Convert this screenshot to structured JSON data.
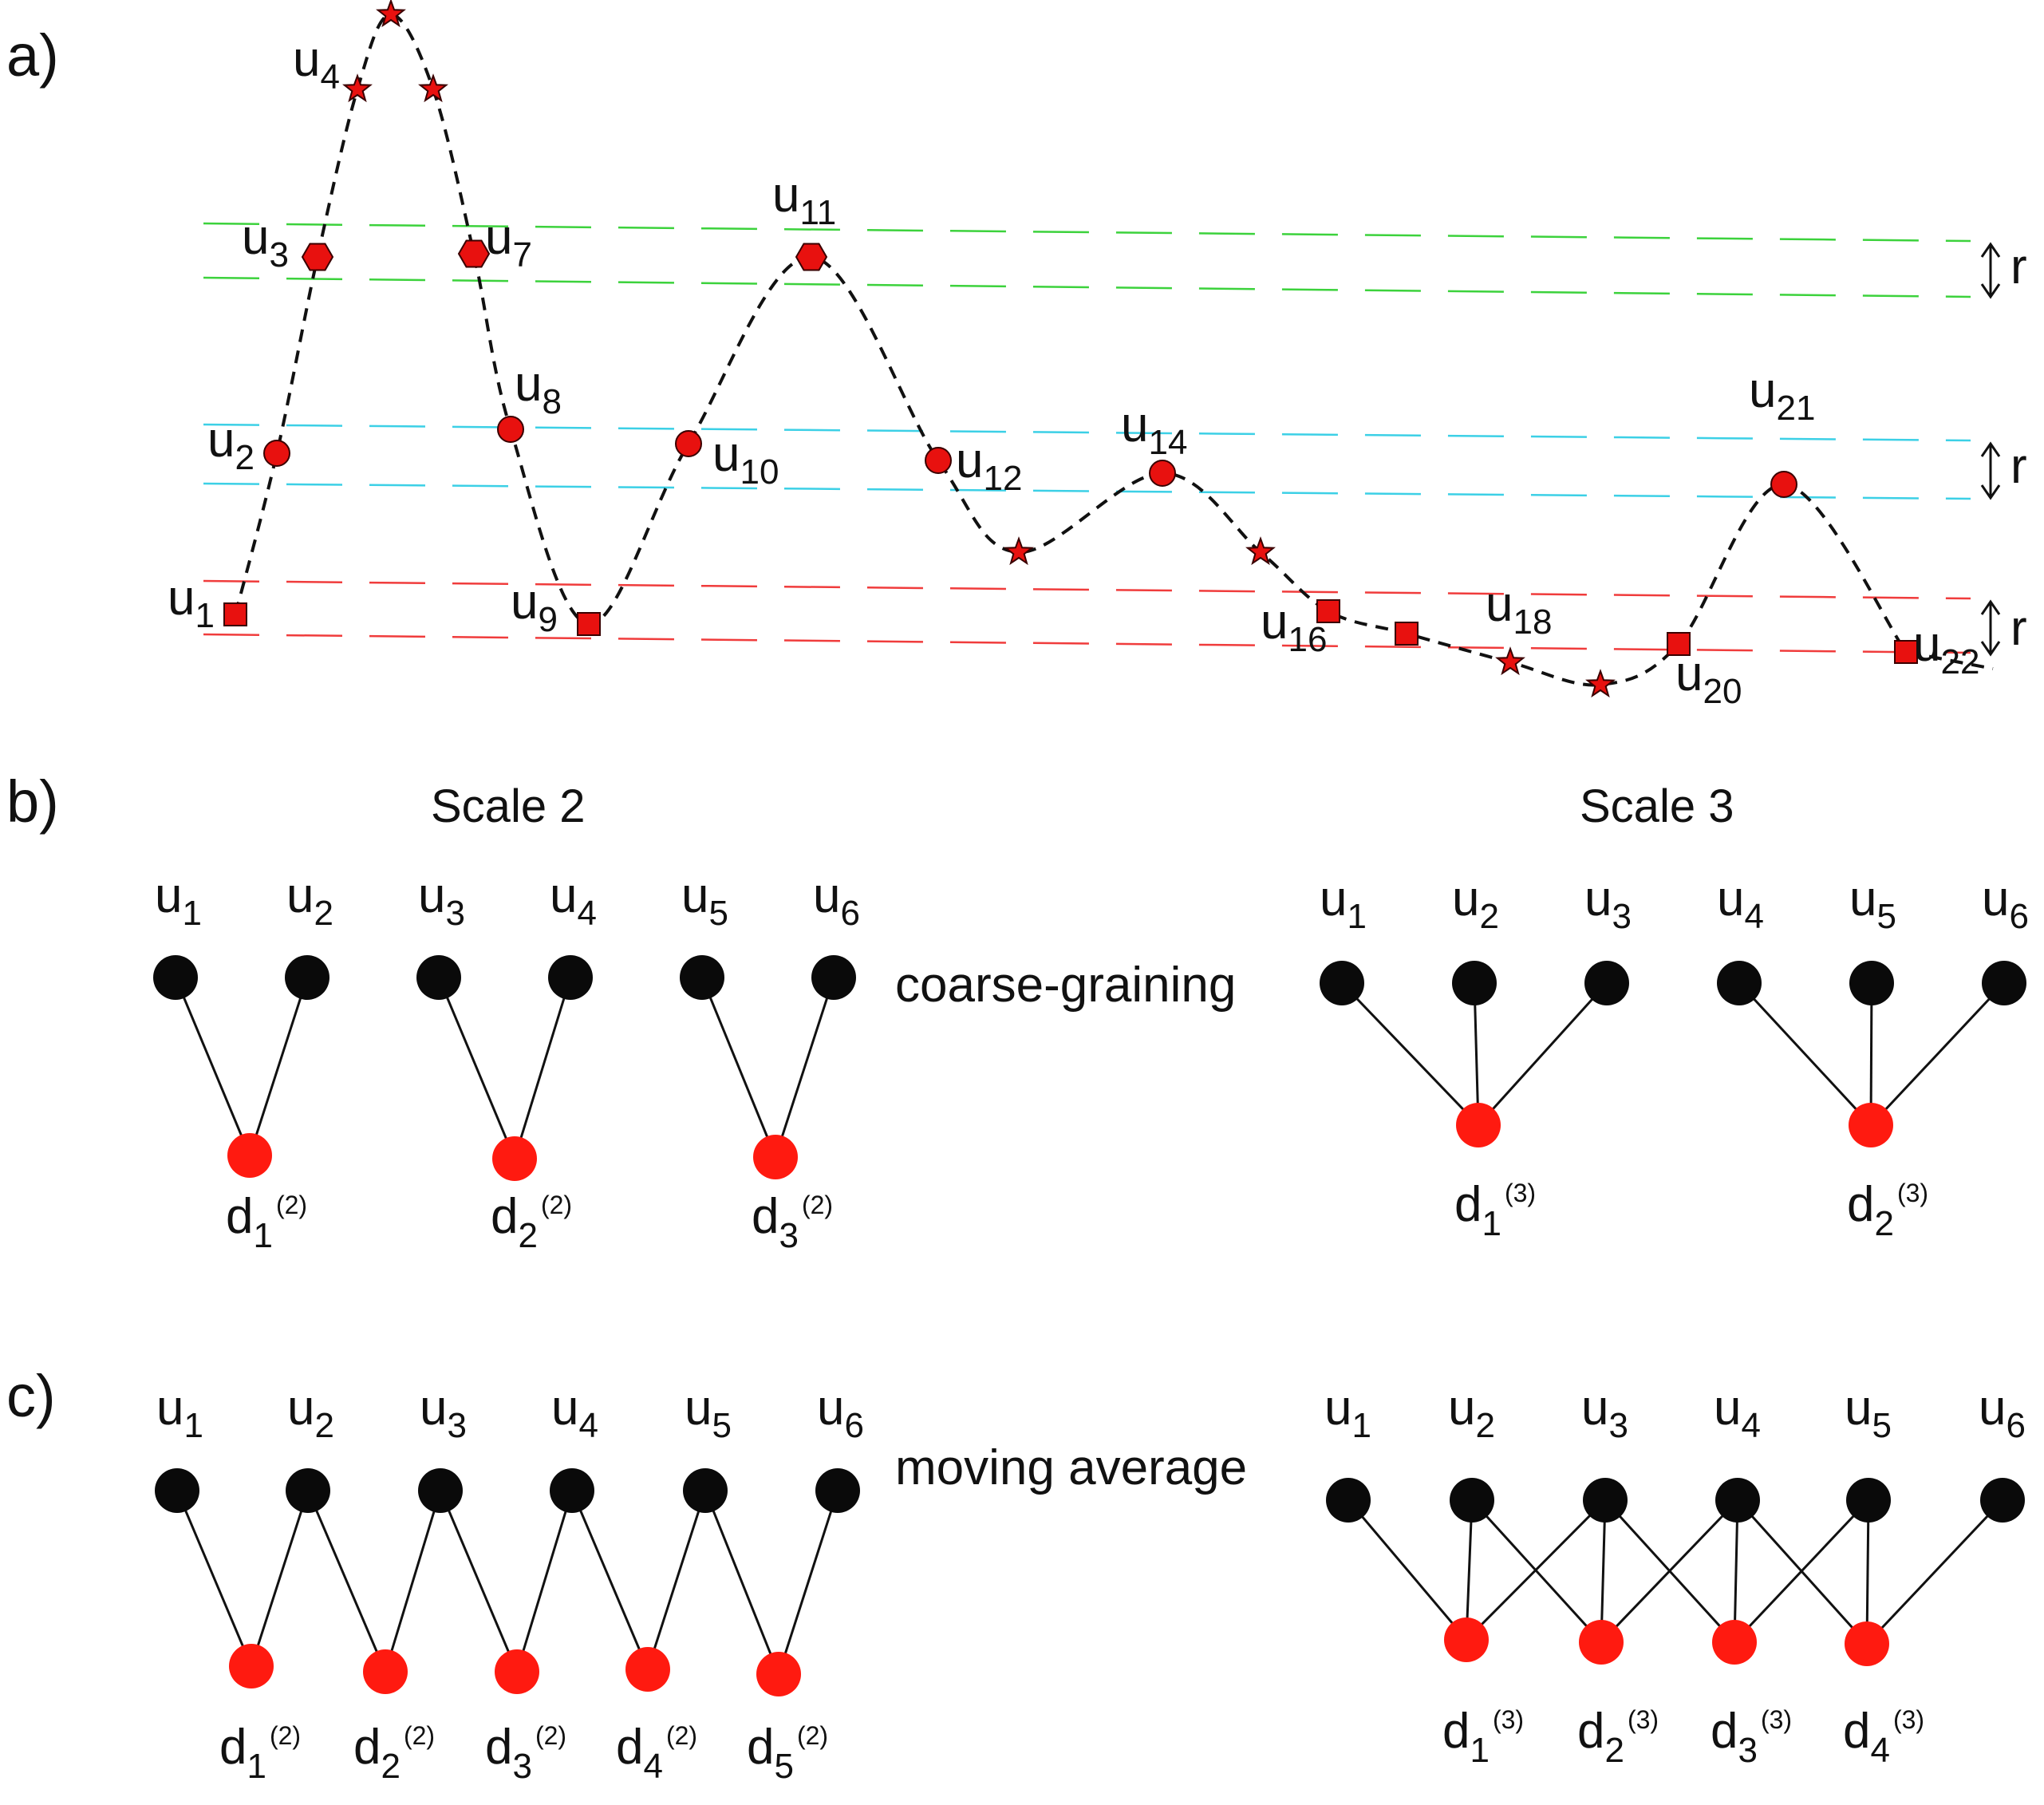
{
  "panel_labels": {
    "a": "a)",
    "b": "b)",
    "c": "c)"
  },
  "colors": {
    "marker_fill": "#e8110f",
    "marker_stroke": "#3a0000",
    "node_black": "#0a0a0a",
    "node_red": "#ff1a10",
    "band_green": "#3cd23c",
    "band_cyan": "#3cd0e6",
    "band_red": "#f03c3c",
    "curve": "#111111"
  },
  "panel_a": {
    "r_label": "r",
    "point_labels": [
      {
        "base": "u",
        "sub": "1"
      },
      {
        "base": "u",
        "sub": "2"
      },
      {
        "base": "u",
        "sub": "3"
      },
      {
        "base": "u",
        "sub": "4"
      },
      {
        "base": "u",
        "sub": "7"
      },
      {
        "base": "u",
        "sub": "8"
      },
      {
        "base": "u",
        "sub": "9"
      },
      {
        "base": "u",
        "sub": "10"
      },
      {
        "base": "u",
        "sub": "11"
      },
      {
        "base": "u",
        "sub": "12"
      },
      {
        "base": "u",
        "sub": "14"
      },
      {
        "base": "u",
        "sub": "16"
      },
      {
        "base": "u",
        "sub": "18"
      },
      {
        "base": "u",
        "sub": "20"
      },
      {
        "base": "u",
        "sub": "21"
      },
      {
        "base": "u",
        "sub": "22"
      }
    ],
    "marker_types": [
      "square",
      "circle",
      "hexagon",
      "star",
      "star",
      "star",
      "hexagon",
      "circle",
      "square",
      "circle",
      "hexagon",
      "circle",
      "star",
      "circle",
      "star",
      "square",
      "square",
      "star",
      "star",
      "square",
      "circle",
      "square"
    ]
  },
  "panel_b": {
    "scale2_title": "Scale 2",
    "scale3_title": "Scale 3",
    "method": "coarse-graining",
    "top_labels": [
      {
        "base": "u",
        "sub": "1"
      },
      {
        "base": "u",
        "sub": "2"
      },
      {
        "base": "u",
        "sub": "3"
      },
      {
        "base": "u",
        "sub": "4"
      },
      {
        "base": "u",
        "sub": "5"
      },
      {
        "base": "u",
        "sub": "6"
      }
    ],
    "scale2_outputs": [
      {
        "base": "d",
        "sub": "1",
        "sup": "(2)"
      },
      {
        "base": "d",
        "sub": "2",
        "sup": "(2)"
      },
      {
        "base": "d",
        "sub": "3",
        "sup": "(2)"
      }
    ],
    "scale3_outputs": [
      {
        "base": "d",
        "sub": "1",
        "sup": "(3)"
      },
      {
        "base": "d",
        "sub": "2",
        "sup": "(3)"
      }
    ]
  },
  "panel_c": {
    "method": "moving average",
    "top_labels": [
      {
        "base": "u",
        "sub": "1"
      },
      {
        "base": "u",
        "sub": "2"
      },
      {
        "base": "u",
        "sub": "3"
      },
      {
        "base": "u",
        "sub": "4"
      },
      {
        "base": "u",
        "sub": "5"
      },
      {
        "base": "u",
        "sub": "6"
      }
    ],
    "scale2_outputs": [
      {
        "base": "d",
        "sub": "1",
        "sup": "(2)"
      },
      {
        "base": "d",
        "sub": "2",
        "sup": "(2)"
      },
      {
        "base": "d",
        "sub": "3",
        "sup": "(2)"
      },
      {
        "base": "d",
        "sub": "4",
        "sup": "(2)"
      },
      {
        "base": "d",
        "sub": "5",
        "sup": "(2)"
      }
    ],
    "scale3_outputs": [
      {
        "base": "d",
        "sub": "1",
        "sup": "(3)"
      },
      {
        "base": "d",
        "sub": "2",
        "sup": "(3)"
      },
      {
        "base": "d",
        "sub": "3",
        "sup": "(3)"
      },
      {
        "base": "d",
        "sub": "4",
        "sup": "(3)"
      }
    ]
  }
}
